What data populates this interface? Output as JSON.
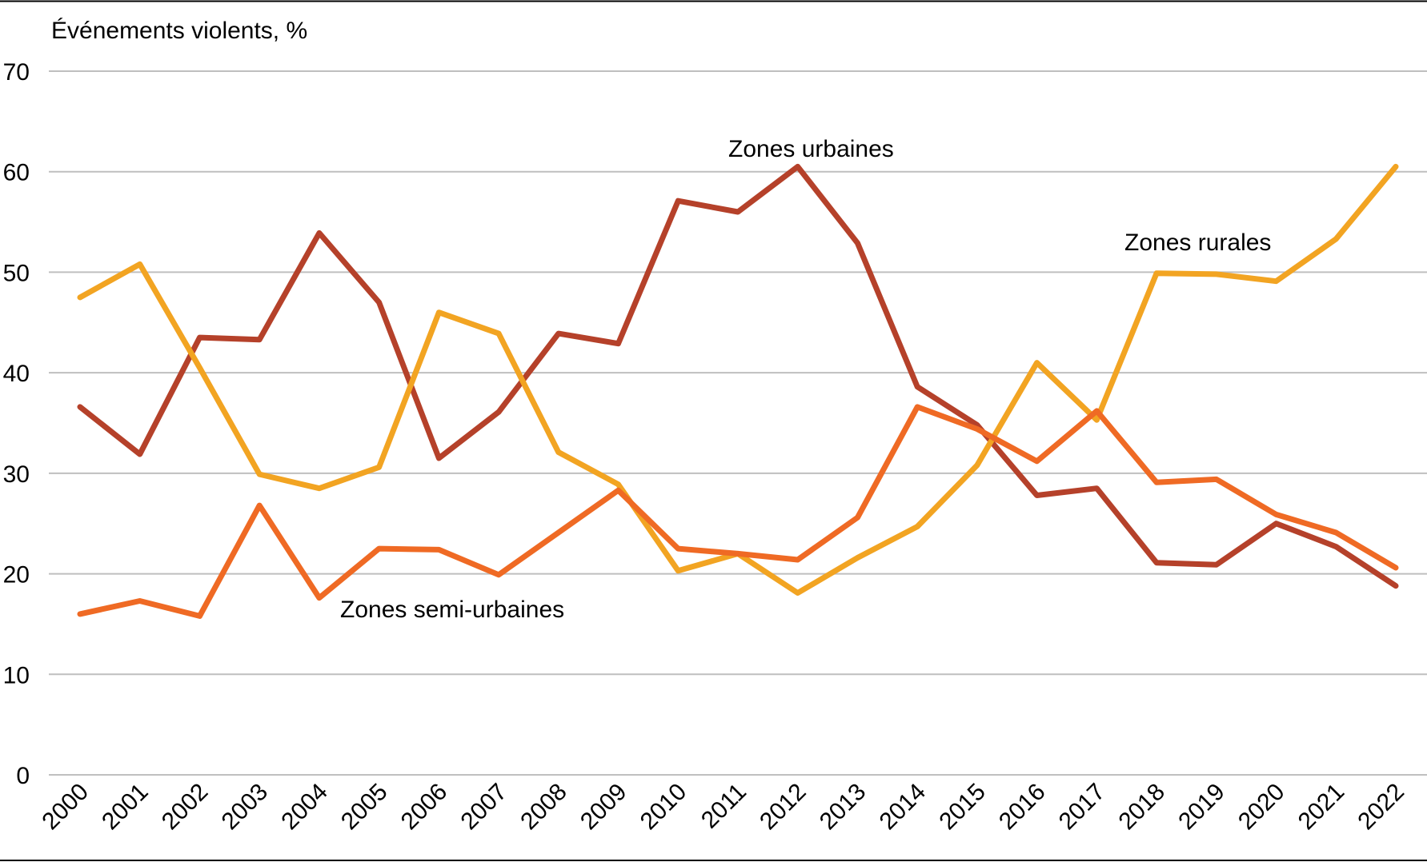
{
  "chart_data": {
    "type": "line",
    "ylabel": "Événements violents, %",
    "ylim": [
      0,
      70
    ],
    "yticks": [
      "0",
      "10",
      "20",
      "30",
      "40",
      "50",
      "60",
      "70"
    ],
    "grid": true,
    "categories": [
      "2000",
      "2001",
      "2002",
      "2003",
      "2004",
      "2005",
      "2006",
      "2007",
      "2008",
      "2009",
      "2010",
      "2011",
      "2012",
      "2013",
      "2014",
      "2015",
      "2016",
      "2017",
      "2018",
      "2019",
      "2020",
      "2021",
      "2022"
    ],
    "series": [
      {
        "name": "Zones urbaines",
        "color": "#B5412A",
        "values": [
          36.6,
          31.9,
          43.5,
          43.3,
          53.9,
          47.0,
          31.5,
          36.1,
          43.9,
          42.9,
          57.1,
          56.0,
          60.5,
          52.9,
          38.6,
          34.8,
          27.8,
          28.5,
          21.1,
          20.9,
          25.0,
          22.7,
          18.8
        ]
      },
      {
        "name": "Zones rurales",
        "color": "#F2A422",
        "values": [
          47.5,
          50.8,
          40.5,
          29.9,
          28.5,
          30.6,
          46.0,
          43.9,
          32.1,
          28.9,
          20.3,
          22.0,
          18.1,
          21.6,
          24.7,
          30.8,
          41.0,
          35.3,
          49.9,
          49.8,
          49.1,
          53.3,
          60.5
        ]
      },
      {
        "name": "Zones semi-urbaines",
        "color": "#EF6A24",
        "values": [
          16.0,
          17.3,
          15.8,
          26.8,
          17.6,
          22.5,
          22.4,
          19.9,
          24.1,
          28.3,
          22.5,
          22.0,
          21.4,
          25.6,
          36.6,
          34.4,
          31.2,
          36.2,
          29.1,
          29.4,
          25.9,
          24.1,
          20.6
        ]
      }
    ]
  }
}
